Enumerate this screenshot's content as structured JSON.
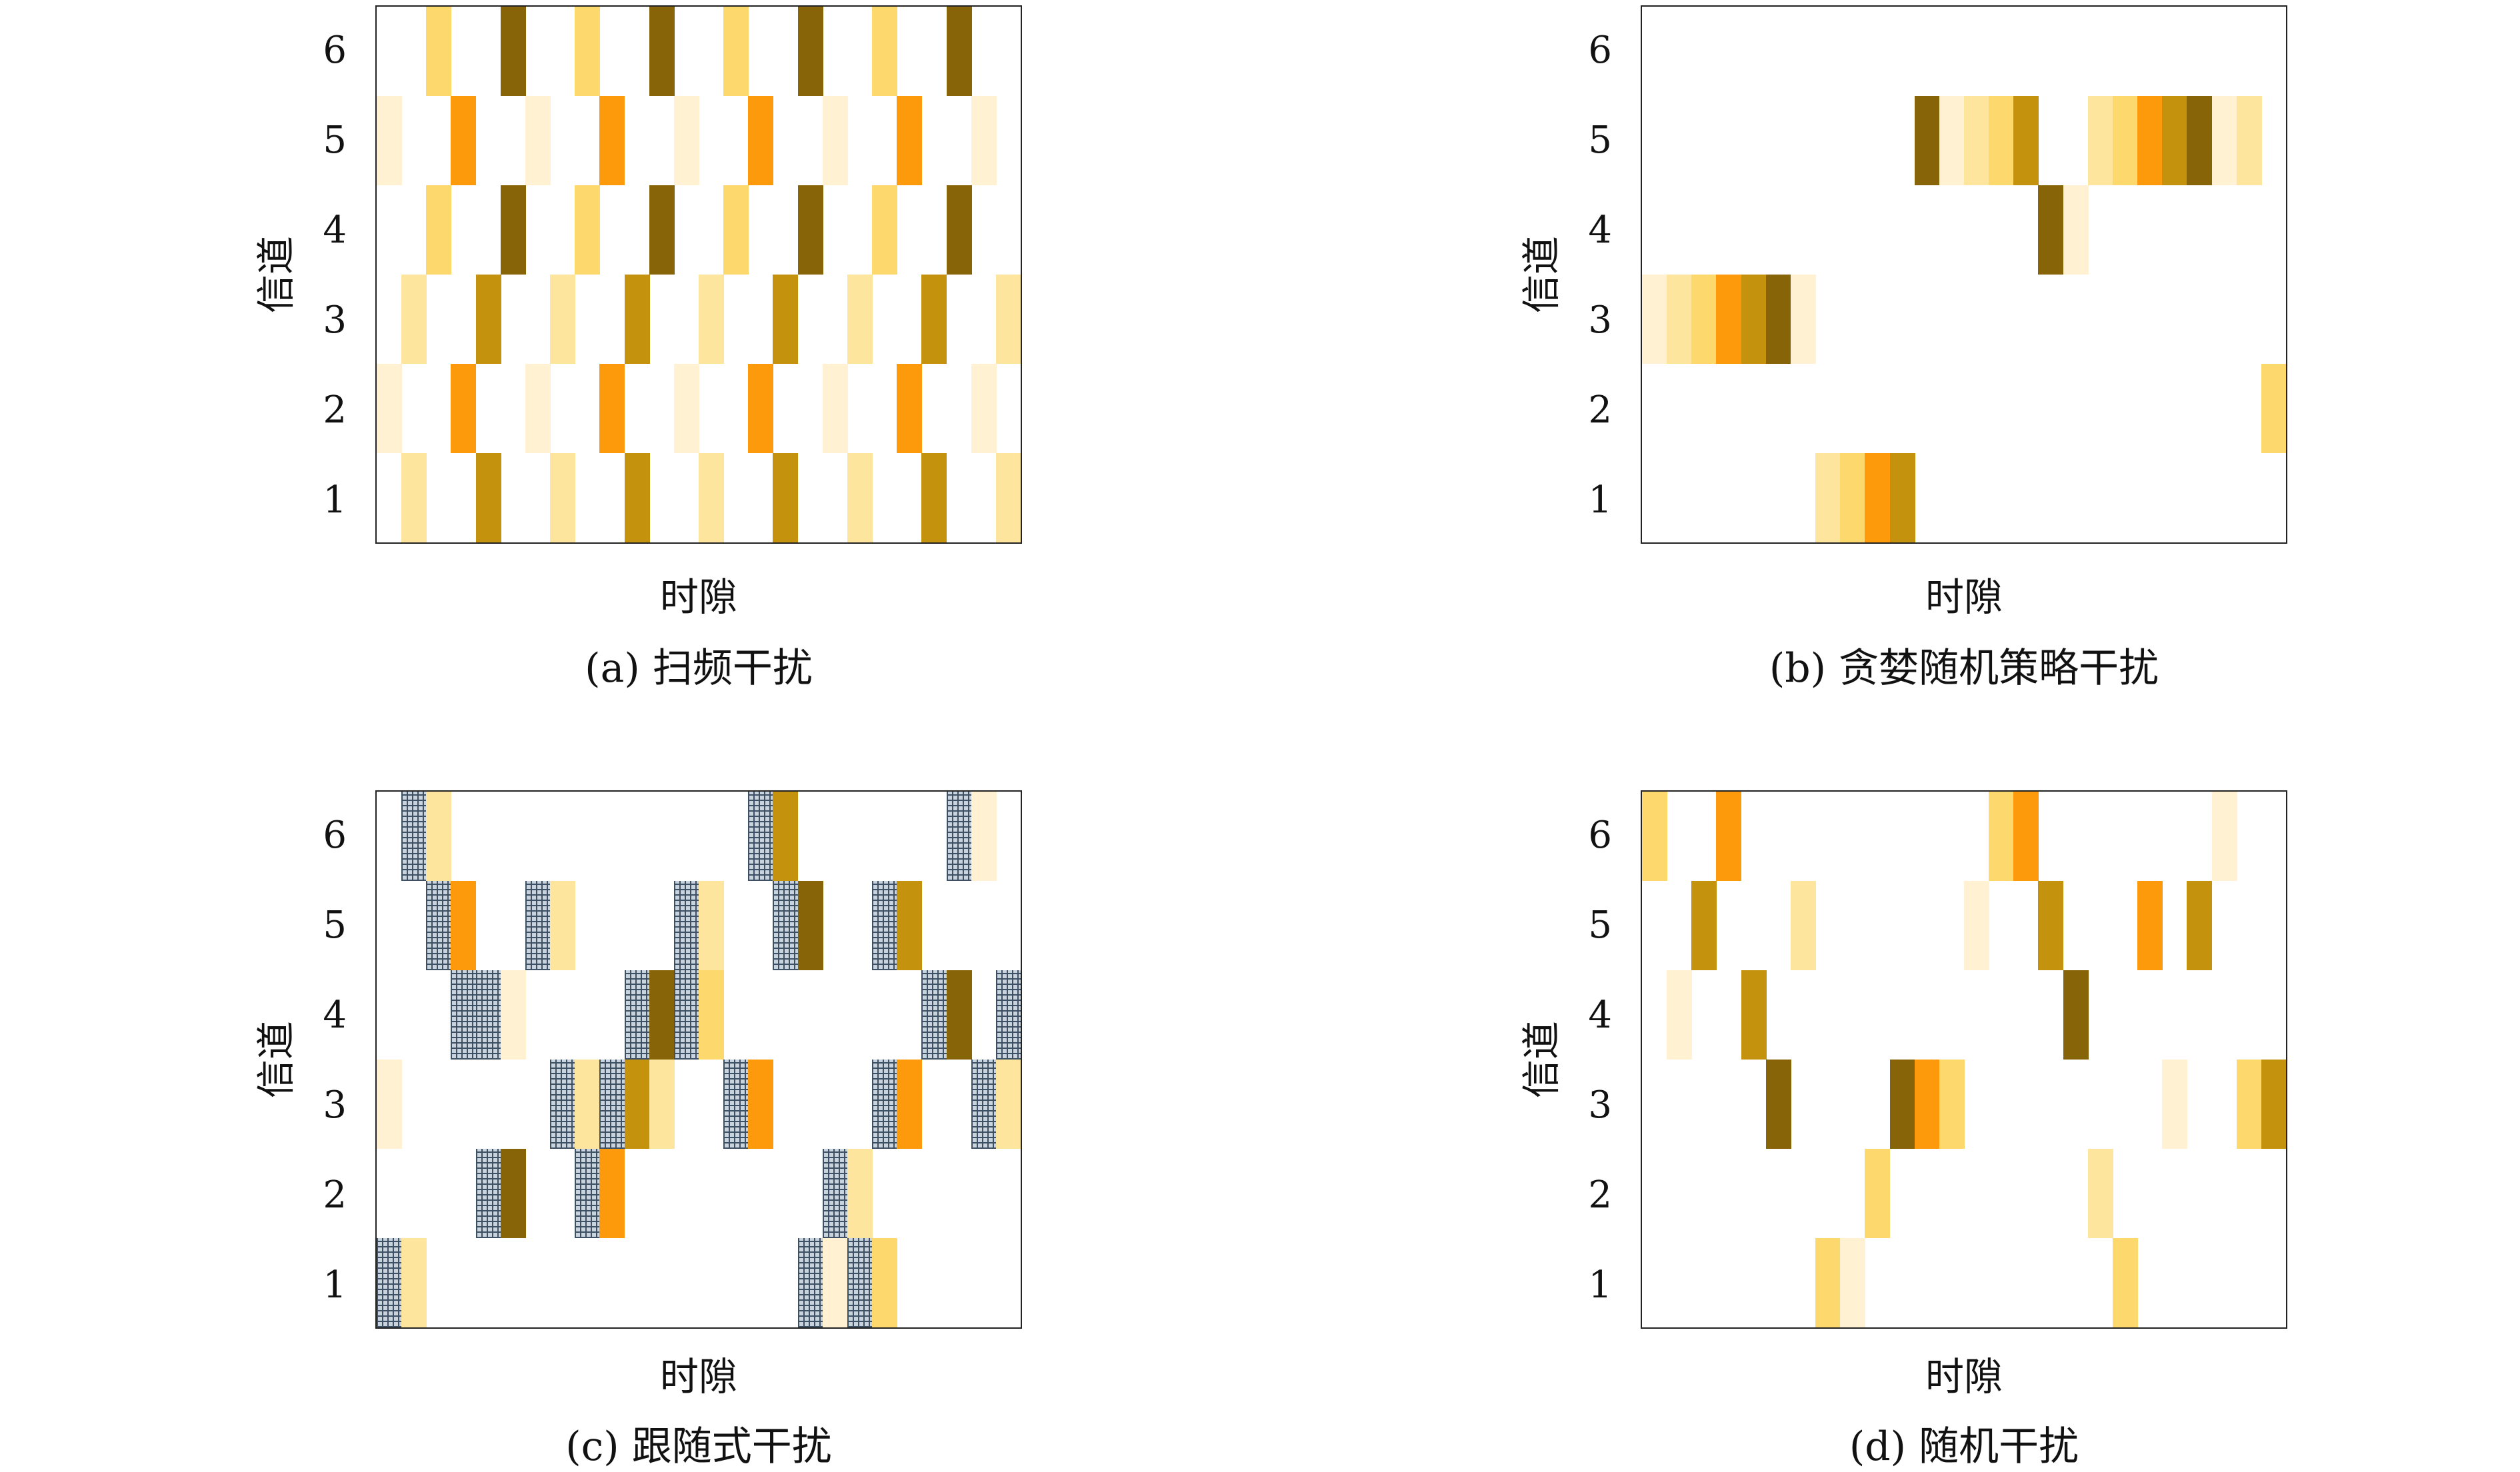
{
  "colors": {
    "level1": "#fff1d1",
    "level2": "#fde59e",
    "level3": "#fdd86d",
    "level4": "#fd9a0c",
    "level5": "#c5920d",
    "level6": "#876408",
    "hatched_fill": "#c8d3de",
    "hatched_line": "#3e5164"
  },
  "chart_data": [
    {
      "type": "heatmap",
      "caption": "(a) 扫频干扰",
      "xlabel": "时隙",
      "ylabel": "信道",
      "y_ticks": [
        "1",
        "2",
        "3",
        "4",
        "5",
        "6"
      ],
      "num_slots": 26,
      "cells": [
        [
          0,
          2,
          1
        ],
        [
          0,
          5,
          1
        ],
        [
          1,
          1,
          2
        ],
        [
          1,
          3,
          2
        ],
        [
          2,
          4,
          3
        ],
        [
          2,
          6,
          3
        ],
        [
          3,
          2,
          4
        ],
        [
          3,
          5,
          4
        ],
        [
          4,
          1,
          5
        ],
        [
          4,
          3,
          5
        ],
        [
          5,
          4,
          6
        ],
        [
          5,
          6,
          6
        ],
        [
          6,
          2,
          1
        ],
        [
          6,
          5,
          1
        ],
        [
          7,
          1,
          2
        ],
        [
          7,
          3,
          2
        ],
        [
          8,
          4,
          3
        ],
        [
          8,
          6,
          3
        ],
        [
          9,
          2,
          4
        ],
        [
          9,
          5,
          4
        ],
        [
          10,
          1,
          5
        ],
        [
          10,
          3,
          5
        ],
        [
          11,
          4,
          6
        ],
        [
          11,
          6,
          6
        ],
        [
          12,
          2,
          1
        ],
        [
          12,
          5,
          1
        ],
        [
          13,
          1,
          2
        ],
        [
          13,
          3,
          2
        ],
        [
          14,
          4,
          3
        ],
        [
          14,
          6,
          3
        ],
        [
          15,
          2,
          4
        ],
        [
          15,
          5,
          4
        ],
        [
          16,
          1,
          5
        ],
        [
          16,
          3,
          5
        ],
        [
          17,
          4,
          6
        ],
        [
          17,
          6,
          6
        ],
        [
          18,
          2,
          1
        ],
        [
          18,
          5,
          1
        ],
        [
          19,
          1,
          2
        ],
        [
          19,
          3,
          2
        ],
        [
          20,
          4,
          3
        ],
        [
          20,
          6,
          3
        ],
        [
          21,
          2,
          4
        ],
        [
          21,
          5,
          4
        ],
        [
          22,
          1,
          5
        ],
        [
          22,
          3,
          5
        ],
        [
          23,
          4,
          6
        ],
        [
          23,
          6,
          6
        ],
        [
          24,
          2,
          1
        ],
        [
          24,
          5,
          1
        ],
        [
          25,
          1,
          2
        ],
        [
          25,
          3,
          2
        ]
      ]
    },
    {
      "type": "heatmap",
      "caption": "(b) 贪婪随机策略干扰",
      "xlabel": "时隙",
      "ylabel": "信道",
      "y_ticks": [
        "1",
        "2",
        "3",
        "4",
        "5",
        "6"
      ],
      "num_slots": 26,
      "cells": [
        [
          0,
          3,
          1
        ],
        [
          1,
          3,
          2
        ],
        [
          2,
          3,
          3
        ],
        [
          3,
          3,
          4
        ],
        [
          4,
          3,
          5
        ],
        [
          5,
          3,
          6
        ],
        [
          6,
          3,
          1
        ],
        [
          7,
          1,
          2
        ],
        [
          8,
          1,
          3
        ],
        [
          9,
          1,
          4
        ],
        [
          10,
          1,
          5
        ],
        [
          11,
          5,
          6
        ],
        [
          12,
          5,
          1
        ],
        [
          13,
          5,
          2
        ],
        [
          14,
          5,
          3
        ],
        [
          15,
          5,
          5
        ],
        [
          16,
          4,
          6
        ],
        [
          17,
          4,
          1
        ],
        [
          18,
          5,
          2
        ],
        [
          19,
          5,
          3
        ],
        [
          20,
          5,
          4
        ],
        [
          21,
          5,
          5
        ],
        [
          22,
          5,
          6
        ],
        [
          23,
          5,
          1
        ],
        [
          24,
          5,
          2
        ],
        [
          25,
          2,
          3
        ]
      ]
    },
    {
      "type": "heatmap",
      "caption": "(c) 跟随式干扰",
      "xlabel": "时隙",
      "ylabel": "信道",
      "y_ticks": [
        "1",
        "2",
        "3",
        "4",
        "5",
        "6"
      ],
      "num_slots": 26,
      "cells": [
        [
          0,
          1,
          "H"
        ],
        [
          0,
          3,
          1
        ],
        [
          1,
          1,
          2
        ],
        [
          1,
          6,
          "H"
        ],
        [
          2,
          6,
          2
        ],
        [
          2,
          5,
          "H"
        ],
        [
          3,
          5,
          4
        ],
        [
          3,
          4,
          "H"
        ],
        [
          4,
          4,
          "H"
        ],
        [
          4,
          2,
          "H"
        ],
        [
          5,
          4,
          1
        ],
        [
          5,
          2,
          6
        ],
        [
          6,
          5,
          "H"
        ],
        [
          7,
          5,
          2
        ],
        [
          7,
          3,
          "H"
        ],
        [
          8,
          3,
          2
        ],
        [
          8,
          2,
          "H"
        ],
        [
          9,
          2,
          4
        ],
        [
          9,
          3,
          "H"
        ],
        [
          10,
          3,
          5
        ],
        [
          10,
          4,
          "H"
        ],
        [
          11,
          4,
          6
        ],
        [
          11,
          3,
          2
        ],
        [
          12,
          5,
          "H"
        ],
        [
          12,
          4,
          "H"
        ],
        [
          13,
          5,
          2
        ],
        [
          13,
          4,
          3
        ],
        [
          14,
          3,
          "H"
        ],
        [
          15,
          3,
          4
        ],
        [
          15,
          6,
          "H"
        ],
        [
          16,
          6,
          5
        ],
        [
          16,
          5,
          "H"
        ],
        [
          17,
          5,
          6
        ],
        [
          17,
          1,
          "H"
        ],
        [
          18,
          1,
          1
        ],
        [
          18,
          2,
          "H"
        ],
        [
          19,
          2,
          2
        ],
        [
          19,
          1,
          "H"
        ],
        [
          20,
          1,
          3
        ],
        [
          20,
          5,
          "H"
        ],
        [
          21,
          5,
          5
        ],
        [
          20,
          3,
          "H"
        ],
        [
          21,
          3,
          4
        ],
        [
          22,
          4,
          "H"
        ],
        [
          23,
          4,
          6
        ],
        [
          23,
          6,
          "H"
        ],
        [
          24,
          6,
          1
        ],
        [
          24,
          3,
          "H"
        ],
        [
          25,
          3,
          2
        ],
        [
          25,
          4,
          "H"
        ]
      ]
    },
    {
      "type": "heatmap",
      "caption": "(d) 随机干扰",
      "xlabel": "时隙",
      "ylabel": "信道",
      "y_ticks": [
        "1",
        "2",
        "3",
        "4",
        "5",
        "6"
      ],
      "num_slots": 26,
      "cells": [
        [
          0,
          6,
          3
        ],
        [
          1,
          4,
          1
        ],
        [
          2,
          5,
          5
        ],
        [
          3,
          6,
          4
        ],
        [
          4,
          4,
          5
        ],
        [
          5,
          3,
          6
        ],
        [
          6,
          5,
          2
        ],
        [
          7,
          1,
          3
        ],
        [
          8,
          1,
          1
        ],
        [
          9,
          2,
          3
        ],
        [
          10,
          3,
          6
        ],
        [
          11,
          3,
          4
        ],
        [
          12,
          3,
          3
        ],
        [
          13,
          5,
          1
        ],
        [
          14,
          6,
          3
        ],
        [
          15,
          6,
          4
        ],
        [
          16,
          5,
          5
        ],
        [
          17,
          4,
          6
        ],
        [
          18,
          2,
          2
        ],
        [
          19,
          1,
          3
        ],
        [
          20,
          5,
          4
        ],
        [
          21,
          3,
          1
        ],
        [
          22,
          5,
          5
        ],
        [
          23,
          6,
          1
        ],
        [
          24,
          3,
          3
        ],
        [
          25,
          3,
          5
        ]
      ]
    }
  ]
}
